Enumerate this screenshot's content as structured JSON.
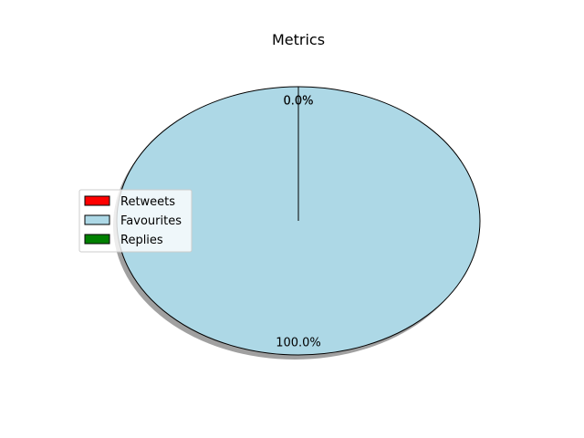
{
  "chart_data": {
    "type": "pie",
    "title": "Metrics",
    "categories": [
      "Retweets",
      "Favourites",
      "Replies"
    ],
    "values": [
      0.0,
      100.0,
      0.0
    ],
    "pct_labels": [
      "0.0%",
      "100.0%",
      "0.0%"
    ],
    "colors": [
      "#ff0000",
      "#add8e6",
      "#008000"
    ],
    "shadow": true,
    "legend_position": "center-left",
    "legend_entries": [
      "Retweets",
      "Favourites",
      "Replies"
    ]
  }
}
